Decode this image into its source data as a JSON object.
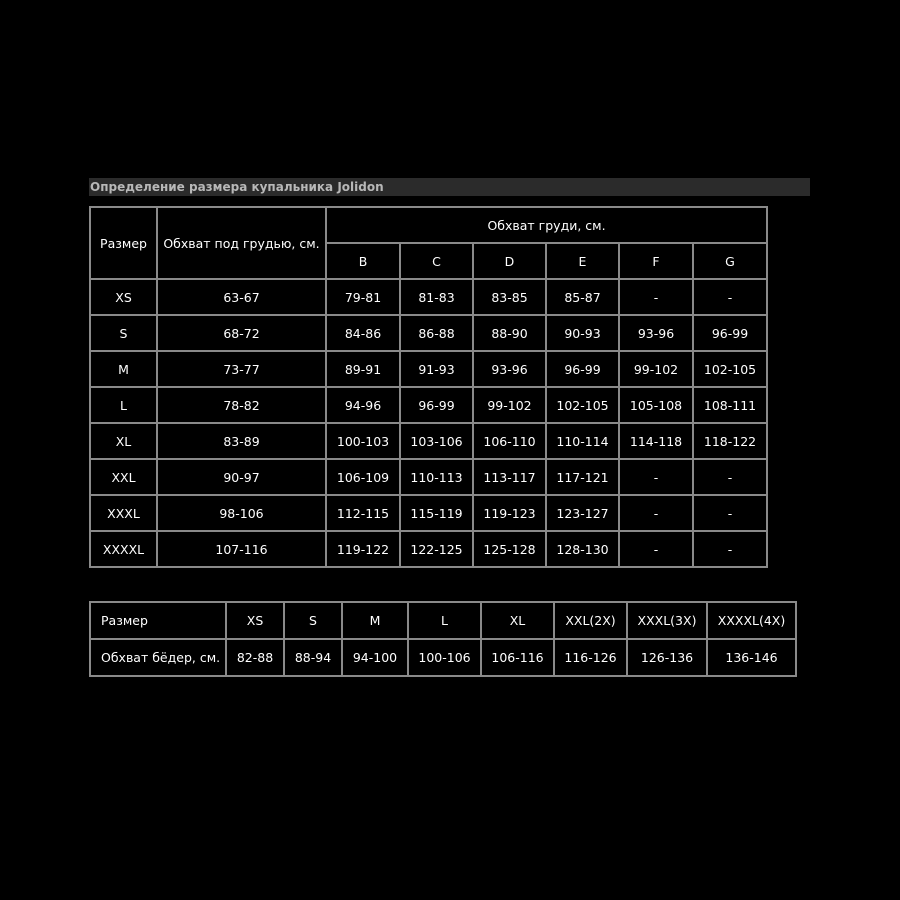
{
  "title": "Определение размера купальника Jolidon",
  "bust_table": {
    "size_header": "Размер",
    "underbust_header": "Обхват под грудью, см.",
    "bust_header": "Обхват груди, см.",
    "cups": [
      "B",
      "C",
      "D",
      "E",
      "F",
      "G"
    ],
    "rows": [
      {
        "size": "XS",
        "underbust": "63-67",
        "values": [
          "79-81",
          "81-83",
          "83-85",
          "85-87",
          "-",
          "-"
        ]
      },
      {
        "size": "S",
        "underbust": "68-72",
        "values": [
          "84-86",
          "86-88",
          "88-90",
          "90-93",
          "93-96",
          "96-99"
        ]
      },
      {
        "size": "M",
        "underbust": "73-77",
        "values": [
          "89-91",
          "91-93",
          "93-96",
          "96-99",
          "99-102",
          "102-105"
        ]
      },
      {
        "size": "L",
        "underbust": "78-82",
        "values": [
          "94-96",
          "96-99",
          "99-102",
          "102-105",
          "105-108",
          "108-111"
        ]
      },
      {
        "size": "XL",
        "underbust": "83-89",
        "values": [
          "100-103",
          "103-106",
          "106-110",
          "110-114",
          "114-118",
          "118-122"
        ]
      },
      {
        "size": "XXL",
        "underbust": "90-97",
        "values": [
          "106-109",
          "110-113",
          "113-117",
          "117-121",
          "-",
          "-"
        ]
      },
      {
        "size": "XXXL",
        "underbust": "98-106",
        "values": [
          "112-115",
          "115-119",
          "119-123",
          "123-127",
          "-",
          "-"
        ]
      },
      {
        "size": "XXXXL",
        "underbust": "107-116",
        "values": [
          "119-122",
          "122-125",
          "125-128",
          "128-130",
          "-",
          "-"
        ]
      }
    ]
  },
  "hip_table": {
    "size_label": "Размер",
    "hip_label": "Обхват бёдер, см.",
    "sizes": [
      "XS",
      "S",
      "M",
      "L",
      "XL",
      "XXL(2X)",
      "XXXL(3X)",
      "XXXXL(4X)"
    ],
    "hips": [
      "82-88",
      "88-94",
      "94-100",
      "100-106",
      "106-116",
      "116-126",
      "126-136",
      "136-146"
    ]
  }
}
